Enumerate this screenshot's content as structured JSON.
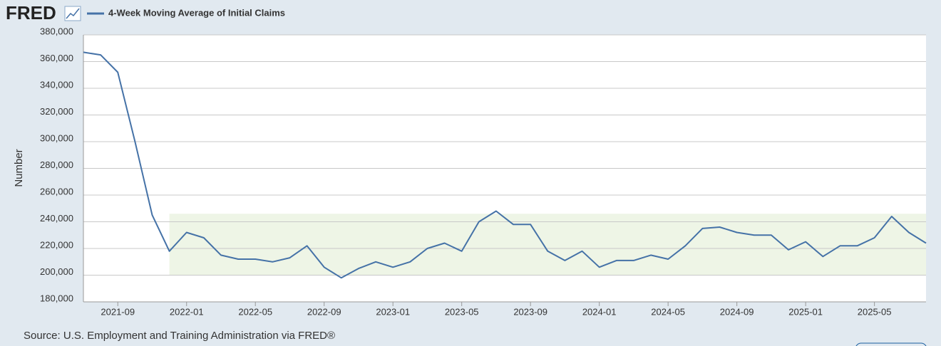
{
  "logo": "FRED",
  "chart_data": {
    "type": "line",
    "y_label": "Number",
    "source": "Source: U.S. Employment and Training Administration via FRED®",
    "x": [
      "2021-07",
      "2021-08",
      "2021-09",
      "2021-10",
      "2021-11",
      "2021-12",
      "2022-01",
      "2022-02",
      "2022-03",
      "2022-04",
      "2022-05",
      "2022-06",
      "2022-07",
      "2022-08",
      "2022-09",
      "2022-10",
      "2022-11",
      "2022-12",
      "2023-01",
      "2023-02",
      "2023-03",
      "2023-04",
      "2023-05",
      "2023-06",
      "2023-07",
      "2023-08",
      "2023-09",
      "2023-10",
      "2023-11",
      "2023-12",
      "2024-01",
      "2024-02",
      "2024-03",
      "2024-04",
      "2024-05",
      "2024-06",
      "2024-07",
      "2024-08",
      "2024-09",
      "2024-10",
      "2024-11",
      "2024-12",
      "2025-01",
      "2025-02",
      "2025-03",
      "2025-04",
      "2025-05",
      "2025-06",
      "2025-07",
      "2025-08"
    ],
    "series": [
      {
        "name": "4-Week Moving Average of Initial Claims",
        "color": "#4572a7",
        "values": [
          367000,
          365000,
          352000,
          300000,
          245000,
          218000,
          232000,
          228000,
          215000,
          212000,
          212000,
          210000,
          213000,
          222000,
          206000,
          198000,
          205000,
          210000,
          206000,
          210000,
          220000,
          224000,
          218000,
          240000,
          248000,
          238000,
          238000,
          218000,
          211000,
          218000,
          206000,
          211000,
          211000,
          215000,
          212000,
          222000,
          235000,
          236000,
          232000,
          230000,
          230000,
          219000,
          225000,
          214000,
          222000,
          222000,
          228000,
          244000,
          232000,
          224000
        ]
      }
    ],
    "xlim": [
      "2021-07",
      "2025-08"
    ],
    "xticks": [
      "2021-09",
      "2022-01",
      "2022-05",
      "2022-09",
      "2023-01",
      "2023-05",
      "2023-09",
      "2024-01",
      "2024-05",
      "2024-09",
      "2025-01",
      "2025-05"
    ],
    "ylim": [
      180000,
      380000
    ],
    "yticks": [
      {
        "value": 180000,
        "label": "180,000"
      },
      {
        "value": 200000,
        "label": "200,000"
      },
      {
        "value": 220000,
        "label": "220,000"
      },
      {
        "value": 240000,
        "label": "240,000"
      },
      {
        "value": 260000,
        "label": "260,000"
      },
      {
        "value": 280000,
        "label": "280,000"
      },
      {
        "value": 300000,
        "label": "300,000"
      },
      {
        "value": 320000,
        "label": "320,000"
      },
      {
        "value": 340000,
        "label": "340,000"
      },
      {
        "value": 360000,
        "label": "360,000"
      },
      {
        "value": 380000,
        "label": "380,000"
      }
    ],
    "grid": true,
    "highlight": {
      "from": "2021-12",
      "ylim": [
        200000,
        246000
      ],
      "color": "#eef5e6"
    }
  }
}
